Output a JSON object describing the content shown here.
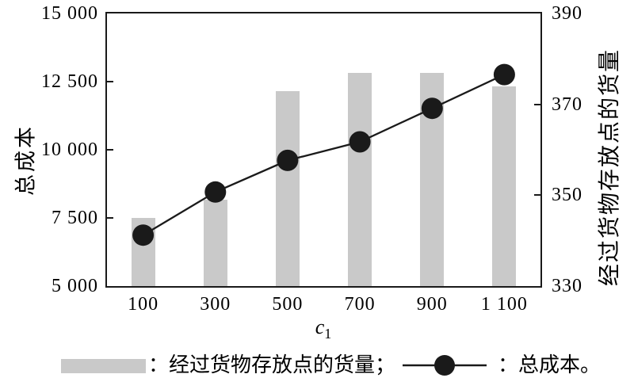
{
  "chart_data": {
    "type": "bar",
    "subtype": "dual-axis combo (bars + line with circle markers)",
    "categories": [
      "100",
      "300",
      "500",
      "700",
      "900",
      "1 100"
    ],
    "x_values": [
      100,
      300,
      500,
      700,
      900,
      1100
    ],
    "xlabel_base": "c",
    "xlabel_sub": "1",
    "left_axis": {
      "title": "总成本",
      "lim": [
        5000,
        15000
      ],
      "ticks": [
        15000,
        12500,
        10000,
        7500,
        5000
      ],
      "tick_labels": [
        "15 000",
        "12 500",
        "10 000",
        "7 500",
        "5 000"
      ]
    },
    "right_axis": {
      "title": "经过货物存放点的货量",
      "lim": [
        330,
        390
      ],
      "ticks": [
        390,
        370,
        350,
        330
      ],
      "tick_labels": [
        "390",
        "370",
        "350",
        "330"
      ]
    },
    "series": [
      {
        "name": "经过货物存放点的货量",
        "type": "bar",
        "axis": "right",
        "color": "#c9c9c9",
        "values": [
          345,
          349,
          373,
          377,
          377,
          374
        ]
      },
      {
        "name": "总成本",
        "type": "line",
        "axis": "left",
        "marker": "circle",
        "color": "#1a1a1a",
        "values": [
          6870,
          8450,
          9610,
          10290,
          11520,
          12760
        ]
      }
    ],
    "legend": {
      "position": "bottom",
      "entries": [
        {
          "swatch": "bar",
          "label": "：经过货物存放点的货量；"
        },
        {
          "swatch": "line-marker",
          "label": "：总成本。"
        }
      ]
    },
    "grid": false,
    "frame": "full box, inward ticks on left and right axes"
  }
}
